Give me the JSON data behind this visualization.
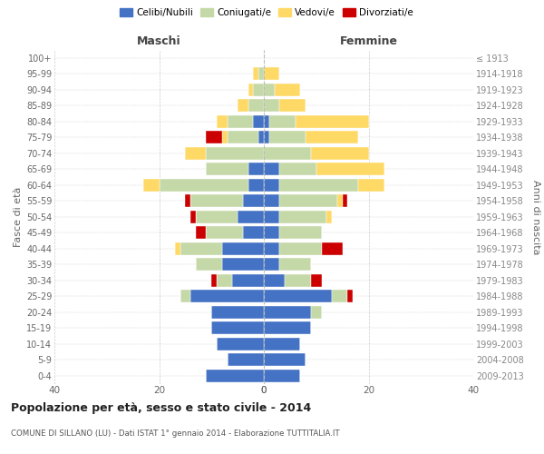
{
  "age_groups": [
    "0-4",
    "5-9",
    "10-14",
    "15-19",
    "20-24",
    "25-29",
    "30-34",
    "35-39",
    "40-44",
    "45-49",
    "50-54",
    "55-59",
    "60-64",
    "65-69",
    "70-74",
    "75-79",
    "80-84",
    "85-89",
    "90-94",
    "95-99",
    "100+"
  ],
  "birth_years": [
    "2009-2013",
    "2004-2008",
    "1999-2003",
    "1994-1998",
    "1989-1993",
    "1984-1988",
    "1979-1983",
    "1974-1978",
    "1969-1973",
    "1964-1968",
    "1959-1963",
    "1954-1958",
    "1949-1953",
    "1944-1948",
    "1939-1943",
    "1934-1938",
    "1929-1933",
    "1924-1928",
    "1919-1923",
    "1914-1918",
    "≤ 1913"
  ],
  "maschi": {
    "celibi": [
      11,
      7,
      9,
      10,
      10,
      14,
      6,
      8,
      8,
      4,
      5,
      4,
      3,
      3,
      0,
      1,
      2,
      0,
      0,
      0,
      0
    ],
    "coniugati": [
      0,
      0,
      0,
      0,
      0,
      2,
      3,
      5,
      8,
      7,
      8,
      10,
      17,
      8,
      11,
      6,
      5,
      3,
      2,
      1,
      0
    ],
    "vedovi": [
      0,
      0,
      0,
      0,
      0,
      0,
      0,
      0,
      1,
      0,
      0,
      0,
      3,
      0,
      4,
      1,
      2,
      2,
      1,
      1,
      0
    ],
    "divorziati": [
      0,
      0,
      0,
      0,
      0,
      0,
      1,
      0,
      0,
      2,
      1,
      1,
      0,
      0,
      0,
      3,
      0,
      0,
      0,
      0,
      0
    ]
  },
  "femmine": {
    "nubili": [
      7,
      8,
      7,
      9,
      9,
      13,
      4,
      3,
      3,
      3,
      3,
      3,
      3,
      3,
      0,
      1,
      1,
      0,
      0,
      0,
      0
    ],
    "coniugate": [
      0,
      0,
      0,
      0,
      2,
      3,
      5,
      6,
      8,
      8,
      9,
      11,
      15,
      7,
      9,
      7,
      5,
      3,
      2,
      0,
      0
    ],
    "vedove": [
      0,
      0,
      0,
      0,
      0,
      0,
      0,
      0,
      0,
      0,
      1,
      1,
      5,
      13,
      11,
      10,
      14,
      5,
      5,
      3,
      0
    ],
    "divorziate": [
      0,
      0,
      0,
      0,
      0,
      1,
      2,
      0,
      4,
      0,
      0,
      1,
      0,
      0,
      0,
      0,
      0,
      0,
      0,
      0,
      0
    ]
  },
  "colors": {
    "celibi": "#4472C4",
    "coniugati": "#C5D9A8",
    "vedovi": "#FFD966",
    "divorziati": "#CC0000"
  },
  "xlim": 40,
  "title": "Popolazione per età, sesso e stato civile - 2014",
  "subtitle": "COMUNE DI SILLANO (LU) - Dati ISTAT 1° gennaio 2014 - Elaborazione TUTTITALIA.IT",
  "ylabel_left": "Fasce di età",
  "ylabel_right": "Anni di nascita",
  "label_maschi": "Maschi",
  "label_femmine": "Femmine",
  "legend_labels": [
    "Celibi/Nubili",
    "Coniugati/e",
    "Vedovi/e",
    "Divorziati/e"
  ],
  "bg_color": "#ffffff",
  "grid_color": "#cccccc"
}
